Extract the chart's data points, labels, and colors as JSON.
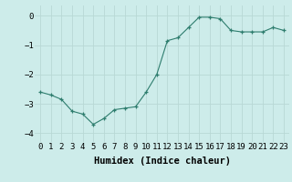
{
  "x": [
    0,
    1,
    2,
    3,
    4,
    5,
    6,
    7,
    8,
    9,
    10,
    11,
    12,
    13,
    14,
    15,
    16,
    17,
    18,
    19,
    20,
    21,
    22,
    23
  ],
  "y": [
    -2.6,
    -2.7,
    -2.85,
    -3.25,
    -3.35,
    -3.7,
    -3.5,
    -3.2,
    -3.15,
    -3.1,
    -2.6,
    -2.0,
    -0.85,
    -0.75,
    -0.4,
    -0.05,
    -0.05,
    -0.1,
    -0.5,
    -0.55,
    -0.55,
    -0.55,
    -0.4,
    -0.5
  ],
  "line_color": "#2e7d6e",
  "marker_color": "#2e7d6e",
  "bg_color": "#cdecea",
  "grid_color": "#b8d8d5",
  "xlabel": "Humidex (Indice chaleur)",
  "xlabel_fontsize": 7.5,
  "tick_fontsize": 6.5,
  "ylim": [
    -4.3,
    0.35
  ],
  "xlim": [
    -0.5,
    23.5
  ],
  "yticks": [
    -4,
    -3,
    -2,
    -1,
    0
  ],
  "xtick_labels": [
    "0",
    "1",
    "2",
    "3",
    "4",
    "5",
    "6",
    "7",
    "8",
    "9",
    "10",
    "11",
    "12",
    "13",
    "14",
    "15",
    "16",
    "17",
    "18",
    "19",
    "20",
    "21",
    "22",
    "23"
  ]
}
